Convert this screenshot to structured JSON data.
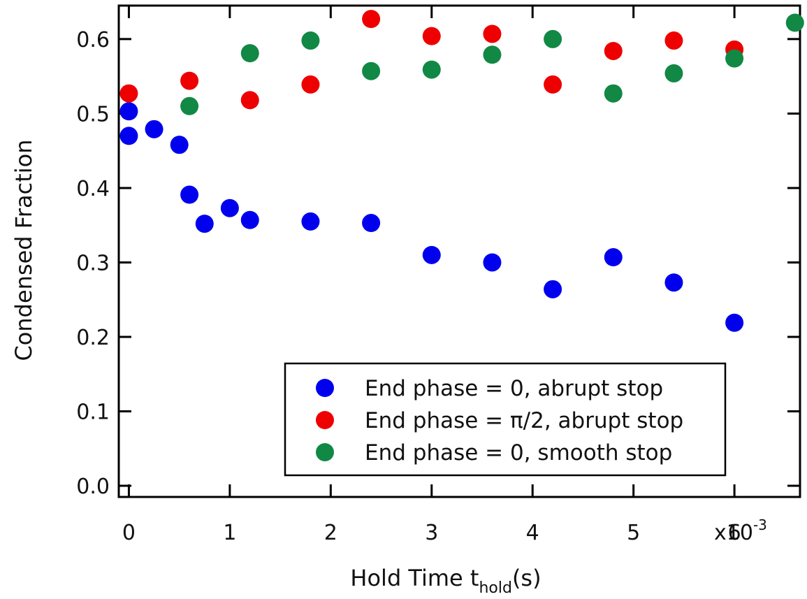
{
  "chart_data": {
    "type": "scatter",
    "title": "",
    "xlabel": {
      "main": "Hold Time t",
      "sub": "hold",
      "suffix": "(s)"
    },
    "ylabel": "Condensed Fraction",
    "xlim": [
      -0.0001,
      0.00665
    ],
    "ylim": [
      -0.015,
      0.645
    ],
    "x_multiplier_label": "x10",
    "x_multiplier_exp": "-3",
    "xticks": [
      0,
      0.001,
      0.002,
      0.003,
      0.004,
      0.005,
      0.006
    ],
    "xtick_labels": [
      "0",
      "1",
      "2",
      "3",
      "4",
      "5",
      "6"
    ],
    "yticks": [
      0.0,
      0.1,
      0.2,
      0.3,
      0.4,
      0.5,
      0.6
    ],
    "ytick_labels": [
      "0.0",
      "0.1",
      "0.2",
      "0.3",
      "0.4",
      "0.5",
      "0.6"
    ],
    "grid": false,
    "legend_position": "bottom-right",
    "series": [
      {
        "name": "End phase = 0, abrupt stop",
        "color": "#0000ee",
        "points": [
          [
            0.0,
            0.503
          ],
          [
            0.0,
            0.47
          ],
          [
            0.00025,
            0.479
          ],
          [
            0.0005,
            0.458
          ],
          [
            0.0006,
            0.391
          ],
          [
            0.00075,
            0.352
          ],
          [
            0.001,
            0.373
          ],
          [
            0.0012,
            0.357
          ],
          [
            0.0018,
            0.355
          ],
          [
            0.0024,
            0.353
          ],
          [
            0.003,
            0.31
          ],
          [
            0.0036,
            0.3
          ],
          [
            0.0042,
            0.264
          ],
          [
            0.0048,
            0.307
          ],
          [
            0.0054,
            0.273
          ],
          [
            0.006,
            0.219
          ]
        ]
      },
      {
        "name": "End phase = π/2, abrupt stop",
        "color": "#ee0000",
        "points": [
          [
            0.0,
            0.527
          ],
          [
            0.0006,
            0.544
          ],
          [
            0.0012,
            0.518
          ],
          [
            0.0018,
            0.539
          ],
          [
            0.0024,
            0.627
          ],
          [
            0.003,
            0.604
          ],
          [
            0.0036,
            0.607
          ],
          [
            0.0042,
            0.539
          ],
          [
            0.0048,
            0.584
          ],
          [
            0.0054,
            0.598
          ],
          [
            0.006,
            0.586
          ]
        ]
      },
      {
        "name": "End phase = 0, smooth stop",
        "color": "#118844",
        "points": [
          [
            0.0006,
            0.51
          ],
          [
            0.0012,
            0.581
          ],
          [
            0.0018,
            0.598
          ],
          [
            0.0024,
            0.557
          ],
          [
            0.003,
            0.559
          ],
          [
            0.0036,
            0.579
          ],
          [
            0.0042,
            0.6
          ],
          [
            0.0048,
            0.527
          ],
          [
            0.0054,
            0.554
          ],
          [
            0.006,
            0.574
          ],
          [
            0.0066,
            0.622
          ]
        ]
      }
    ]
  }
}
